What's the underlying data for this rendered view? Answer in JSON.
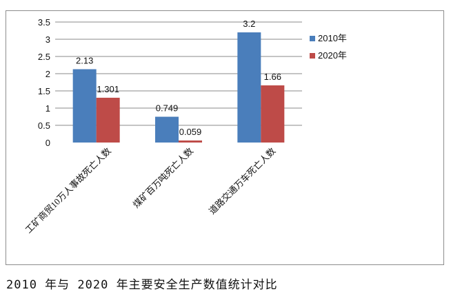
{
  "chart_data": {
    "type": "bar",
    "title": "",
    "xlabel": "",
    "ylabel": "",
    "categories": [
      "工矿商贸10万人事故死亡人数",
      "煤矿百万吨死亡人数",
      "道路交通万车死亡人数"
    ],
    "series": [
      {
        "name": "2010年",
        "values": [
          2.13,
          0.749,
          3.2
        ],
        "labels": [
          "2.13",
          "0.749",
          "3.2"
        ],
        "color": "#4a7ebb"
      },
      {
        "name": "2020年",
        "values": [
          1.301,
          0.059,
          1.66
        ],
        "labels": [
          "1.301",
          "0.059",
          "1.66"
        ],
        "color": "#be4b48"
      }
    ],
    "ylim": [
      0,
      3.5
    ],
    "yticks": [
      "0",
      "0.5",
      "1",
      "1.5",
      "2",
      "2.5",
      "3",
      "3.5"
    ],
    "grid": true,
    "legend": "right"
  },
  "caption": "2010 年与 2020 年主要安全生产数值统计对比"
}
